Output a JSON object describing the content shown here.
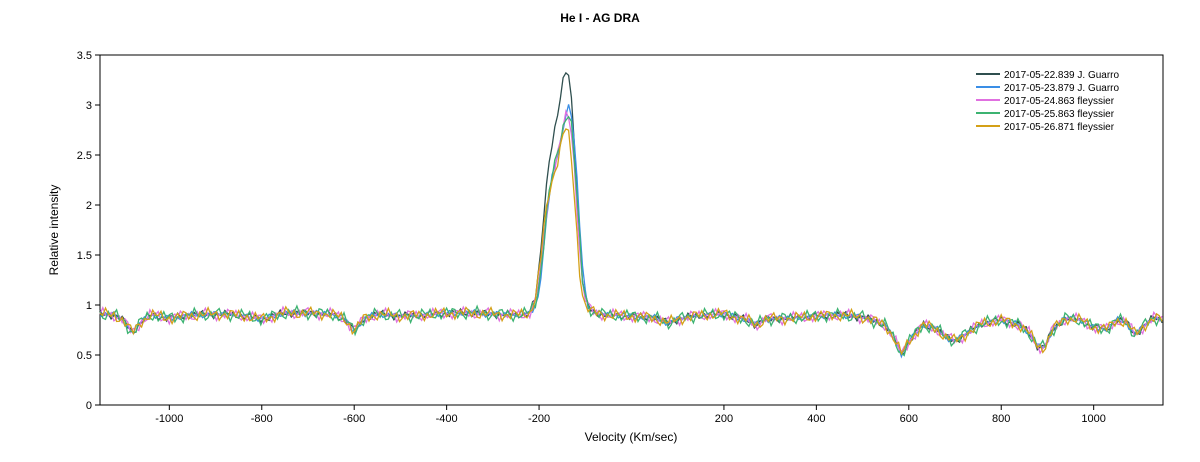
{
  "chart_data": {
    "type": "line",
    "title": "He I - AG DRA",
    "xlabel": "Velocity (Km/sec)",
    "ylabel": "Relative intensity",
    "xlim": [
      -1150,
      1150
    ],
    "ylim": [
      0,
      3.5
    ],
    "xticks": [
      -1000,
      -800,
      -600,
      -400,
      -200,
      200,
      400,
      600,
      800,
      1000
    ],
    "yticks": [
      0,
      0.5,
      1,
      1.5,
      2,
      2.5,
      3,
      3.5
    ],
    "ytick_labels": [
      "0",
      "0.5",
      "1",
      "1.5",
      "2",
      "2.5",
      "3",
      "3.5"
    ],
    "grid": false,
    "legend_position": "top-right",
    "base_profile": [
      [
        -1150,
        0.91
      ],
      [
        -1120,
        0.9
      ],
      [
        -1100,
        0.85
      ],
      [
        -1080,
        0.72
      ],
      [
        -1060,
        0.84
      ],
      [
        -1040,
        0.9
      ],
      [
        -1000,
        0.87
      ],
      [
        -950,
        0.9
      ],
      [
        -900,
        0.91
      ],
      [
        -850,
        0.9
      ],
      [
        -800,
        0.86
      ],
      [
        -750,
        0.92
      ],
      [
        -700,
        0.92
      ],
      [
        -650,
        0.91
      ],
      [
        -620,
        0.86
      ],
      [
        -600,
        0.74
      ],
      [
        -580,
        0.86
      ],
      [
        -550,
        0.91
      ],
      [
        -500,
        0.89
      ],
      [
        -450,
        0.9
      ],
      [
        -400,
        0.92
      ],
      [
        -350,
        0.92
      ],
      [
        -300,
        0.91
      ],
      [
        -250,
        0.9
      ],
      [
        -220,
        0.92
      ],
      [
        -205,
        1.05
      ],
      [
        -195,
        1.4
      ],
      [
        -185,
        1.9
      ],
      [
        -175,
        2.25
      ],
      [
        -165,
        2.45
      ],
      [
        -155,
        2.65
      ],
      [
        -145,
        2.9
      ],
      [
        -137,
        3.0
      ],
      [
        -130,
        2.85
      ],
      [
        -122,
        2.4
      ],
      [
        -114,
        1.8
      ],
      [
        -106,
        1.25
      ],
      [
        -96,
        1.0
      ],
      [
        -80,
        0.92
      ],
      [
        -50,
        0.9
      ],
      [
        0,
        0.89
      ],
      [
        50,
        0.87
      ],
      [
        80,
        0.82
      ],
      [
        100,
        0.86
      ],
      [
        150,
        0.9
      ],
      [
        200,
        0.91
      ],
      [
        250,
        0.85
      ],
      [
        270,
        0.8
      ],
      [
        290,
        0.86
      ],
      [
        350,
        0.87
      ],
      [
        400,
        0.89
      ],
      [
        450,
        0.9
      ],
      [
        500,
        0.88
      ],
      [
        550,
        0.8
      ],
      [
        570,
        0.65
      ],
      [
        585,
        0.5
      ],
      [
        600,
        0.64
      ],
      [
        630,
        0.8
      ],
      [
        660,
        0.76
      ],
      [
        680,
        0.68
      ],
      [
        700,
        0.64
      ],
      [
        720,
        0.7
      ],
      [
        760,
        0.82
      ],
      [
        800,
        0.85
      ],
      [
        840,
        0.8
      ],
      [
        860,
        0.72
      ],
      [
        880,
        0.58
      ],
      [
        895,
        0.58
      ],
      [
        910,
        0.75
      ],
      [
        940,
        0.87
      ],
      [
        970,
        0.85
      ],
      [
        1000,
        0.78
      ],
      [
        1030,
        0.76
      ],
      [
        1050,
        0.85
      ],
      [
        1070,
        0.83
      ],
      [
        1090,
        0.7
      ],
      [
        1110,
        0.8
      ],
      [
        1130,
        0.87
      ],
      [
        1150,
        0.85
      ]
    ],
    "series": [
      {
        "name": "2017-05-22.839  J. Guarro",
        "color": "#2f4f4f",
        "peak": 3.38,
        "peak_x": -139,
        "noise": 0.02
      },
      {
        "name": "2017-05-23.879  J. Guarro",
        "color": "#3a8ee6",
        "peak": 3.0,
        "peak_x": -135,
        "noise": 0.016
      },
      {
        "name": "2017-05-24.863  fleyssier",
        "color": "#e070e0",
        "peak": 2.92,
        "peak_x": -138,
        "noise": 0.03
      },
      {
        "name": "2017-05-25.863  fleyssier",
        "color": "#3cb371",
        "peak": 2.95,
        "peak_x": -137,
        "noise": 0.032
      },
      {
        "name": "2017-05-26.871  fleyssier",
        "color": "#d4a017",
        "peak": 2.78,
        "peak_x": -141,
        "noise": 0.03
      }
    ]
  }
}
